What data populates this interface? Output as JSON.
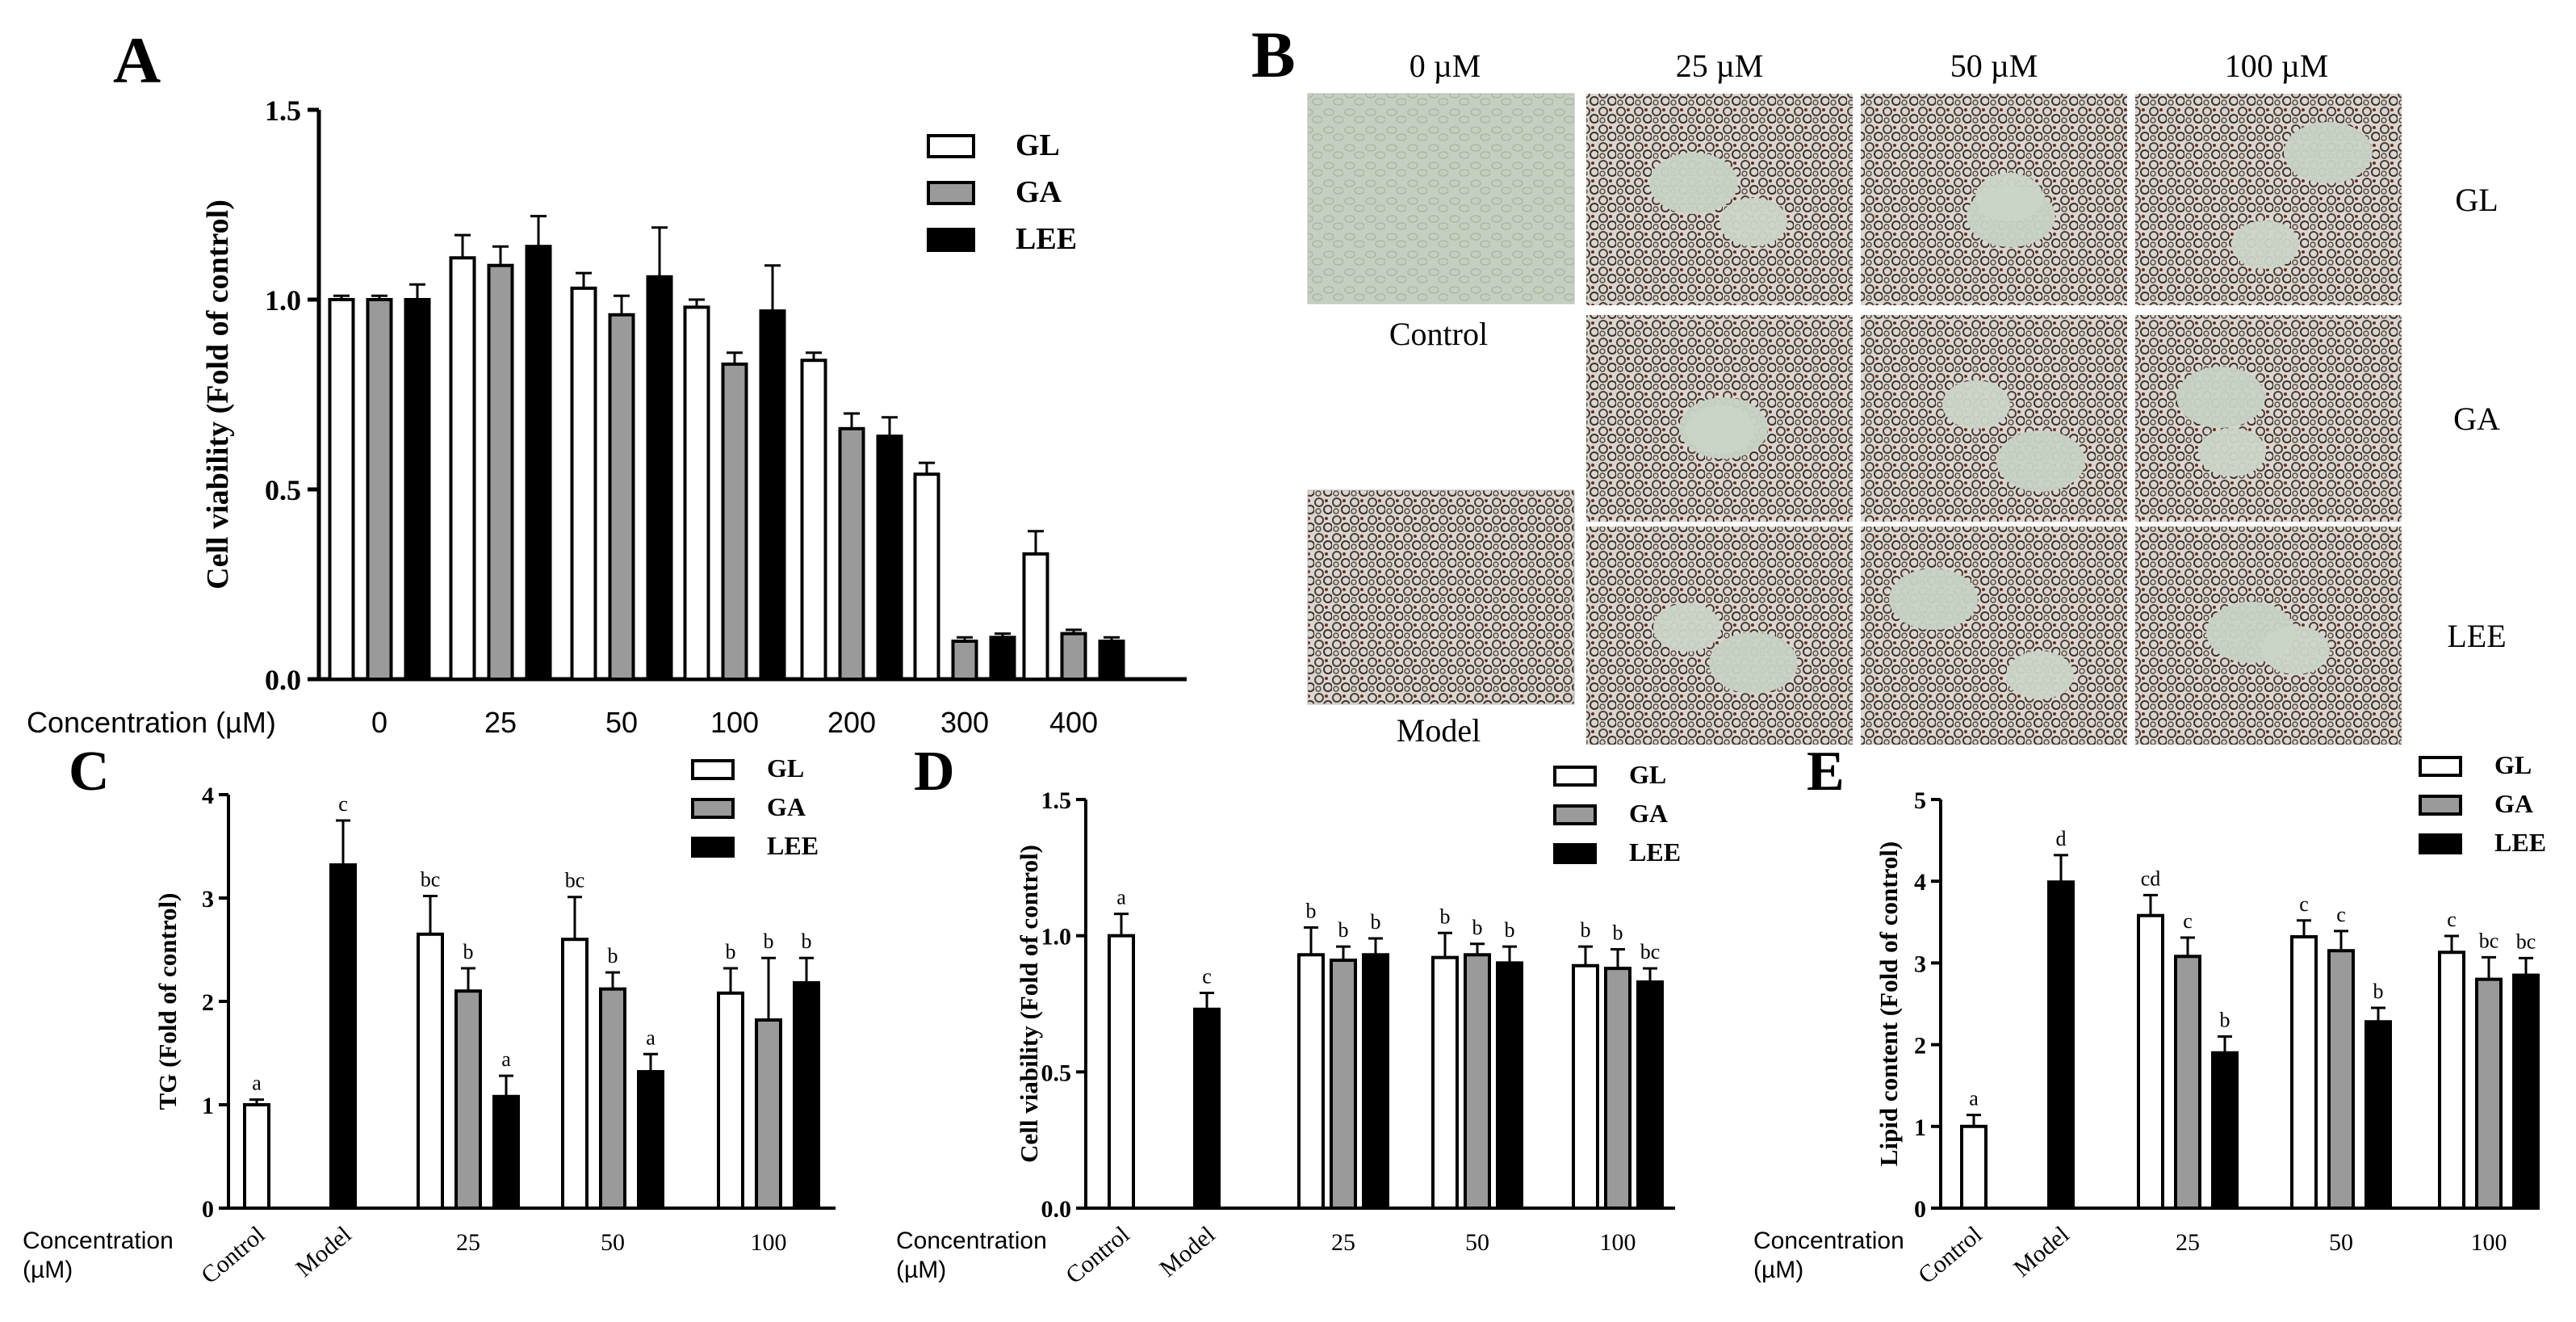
{
  "colors": {
    "GL": "#ffffff",
    "GA": "#9a9a9a",
    "LEE": "#000000",
    "Model": "#000000",
    "Control": "#ffffff",
    "axis": "#000000"
  },
  "panelA": {
    "letter": "A",
    "chart_data": {
      "type": "bar",
      "ylabel": "Cell viability (Fold of control)",
      "xlabel": "Concentration (µM)",
      "categories": [
        "0",
        "25",
        "50",
        "100",
        "200",
        "300",
        "400"
      ],
      "ylim": [
        0,
        1.5
      ],
      "yticks": [
        "0.0",
        "0.5",
        "1.0",
        "1.5"
      ],
      "legend_position": "top-right",
      "series": [
        {
          "name": "GL",
          "values": [
            1.0,
            1.11,
            1.03,
            0.98,
            0.84,
            0.54,
            0.33
          ],
          "errors": [
            0.01,
            0.06,
            0.04,
            0.02,
            0.02,
            0.03,
            0.06
          ]
        },
        {
          "name": "GA",
          "values": [
            1.0,
            1.09,
            0.96,
            0.83,
            0.66,
            0.1,
            0.12
          ],
          "errors": [
            0.01,
            0.05,
            0.05,
            0.03,
            0.04,
            0.01,
            0.01
          ]
        },
        {
          "name": "LEE",
          "values": [
            1.0,
            1.14,
            1.06,
            0.97,
            0.64,
            0.11,
            0.1
          ],
          "errors": [
            0.04,
            0.08,
            0.13,
            0.12,
            0.05,
            0.01,
            0.01
          ]
        }
      ]
    }
  },
  "panelB": {
    "letter": "B",
    "columns": [
      "0 µM",
      "25 µM",
      "50 µM",
      "100 µM"
    ],
    "rows": [
      "GL",
      "GA",
      "LEE"
    ],
    "left_labels": [
      "Control",
      "Model"
    ]
  },
  "panelC": {
    "letter": "C",
    "chart_data": {
      "type": "bar",
      "ylabel": "TG (Fold of control)",
      "xlabel": "Concentration (µM)",
      "ylim": [
        0,
        4
      ],
      "yticks": [
        "0",
        "1",
        "2",
        "3",
        "4"
      ],
      "singles": [
        {
          "label": "Control",
          "value": 1.0,
          "error": 0.05,
          "sig": "a",
          "color": "#ffffff"
        },
        {
          "label": "Model",
          "value": 3.32,
          "error": 0.43,
          "sig": "c",
          "color": "#000000"
        }
      ],
      "categories": [
        "25",
        "50",
        "100"
      ],
      "series": [
        {
          "name": "GL",
          "values": [
            2.65,
            2.6,
            2.08
          ],
          "errors": [
            0.37,
            0.41,
            0.24
          ],
          "sig": [
            "bc",
            "bc",
            "b"
          ]
        },
        {
          "name": "GA",
          "values": [
            2.1,
            2.12,
            1.82
          ],
          "errors": [
            0.22,
            0.16,
            0.6
          ],
          "sig": [
            "b",
            "b",
            "b"
          ]
        },
        {
          "name": "LEE",
          "values": [
            1.08,
            1.32,
            2.18
          ],
          "errors": [
            0.2,
            0.17,
            0.24
          ],
          "sig": [
            "a",
            "a",
            "b"
          ]
        }
      ],
      "legend_position": "top-right"
    }
  },
  "panelD": {
    "letter": "D",
    "chart_data": {
      "type": "bar",
      "ylabel": "Cell viability (Fold of control)",
      "xlabel": "Concentration (µM)",
      "ylim": [
        0,
        1.5
      ],
      "yticks": [
        "0.0",
        "0.5",
        "1.0",
        "1.5"
      ],
      "singles": [
        {
          "label": "Control",
          "value": 1.0,
          "error": 0.08,
          "sig": "a",
          "color": "#ffffff"
        },
        {
          "label": "Model",
          "value": 0.73,
          "error": 0.06,
          "sig": "c",
          "color": "#000000"
        }
      ],
      "categories": [
        "25",
        "50",
        "100"
      ],
      "series": [
        {
          "name": "GL",
          "values": [
            0.93,
            0.92,
            0.89
          ],
          "errors": [
            0.1,
            0.09,
            0.07
          ],
          "sig": [
            "b",
            "b",
            "b"
          ]
        },
        {
          "name": "GA",
          "values": [
            0.91,
            0.93,
            0.88
          ],
          "errors": [
            0.05,
            0.04,
            0.07
          ],
          "sig": [
            "b",
            "b",
            "b"
          ]
        },
        {
          "name": "LEE",
          "values": [
            0.93,
            0.9,
            0.83
          ],
          "errors": [
            0.06,
            0.06,
            0.05
          ],
          "sig": [
            "b",
            "b",
            "bc"
          ]
        }
      ],
      "legend_position": "top-right"
    }
  },
  "panelE": {
    "letter": "E",
    "chart_data": {
      "type": "bar",
      "ylabel": "Lipid content (Fold of control)",
      "xlabel": "Concentration (µM)",
      "ylim": [
        0,
        5
      ],
      "yticks": [
        "0",
        "1",
        "2",
        "3",
        "4",
        "5"
      ],
      "singles": [
        {
          "label": "Control",
          "value": 1.0,
          "error": 0.14,
          "sig": "a",
          "color": "#ffffff"
        },
        {
          "label": "Model",
          "value": 3.99,
          "error": 0.33,
          "sig": "d",
          "color": "#000000"
        }
      ],
      "categories": [
        "25",
        "50",
        "100"
      ],
      "series": [
        {
          "name": "GL",
          "values": [
            3.58,
            3.32,
            3.13
          ],
          "errors": [
            0.25,
            0.2,
            0.2
          ],
          "sig": [
            "cd",
            "c",
            "c"
          ]
        },
        {
          "name": "GA",
          "values": [
            3.08,
            3.15,
            2.8
          ],
          "errors": [
            0.23,
            0.24,
            0.27
          ],
          "sig": [
            "c",
            "c",
            "bc"
          ]
        },
        {
          "name": "LEE",
          "values": [
            1.9,
            2.28,
            2.85
          ],
          "errors": [
            0.2,
            0.17,
            0.21
          ],
          "sig": [
            "b",
            "b",
            "bc"
          ]
        }
      ],
      "legend_position": "top-right"
    }
  }
}
